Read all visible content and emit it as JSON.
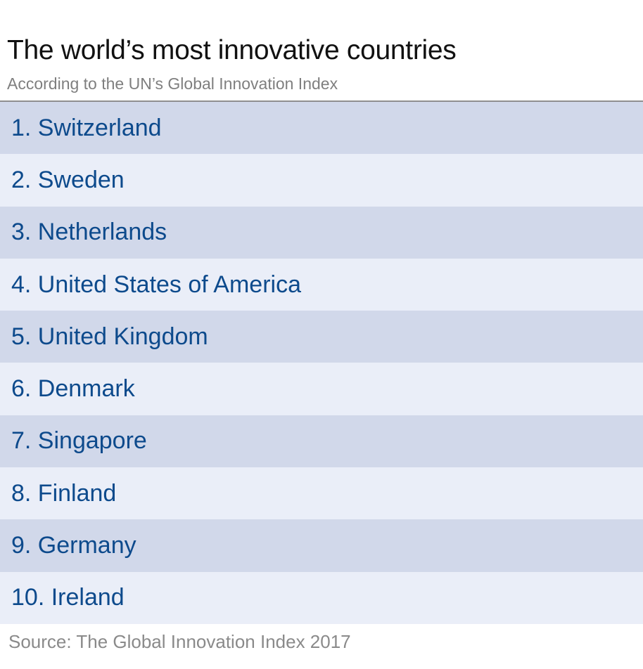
{
  "title": "The world’s most innovative countries",
  "subtitle": "According to the UN’s Global Innovation Index",
  "source": "Source: The Global Innovation Index 2017",
  "chart_data": {
    "type": "table",
    "title": "The world’s most innovative countries",
    "subtitle": "According to the UN’s Global Innovation Index",
    "rows": [
      "1. Switzerland",
      "2. Sweden",
      "3. Netherlands",
      "4. United States of America",
      "5. United Kingdom",
      "6. Denmark",
      "7. Singapore",
      "8. Finland",
      "9. Germany",
      "10. Ireland"
    ],
    "colors": {
      "row_odd": "#d1d8ea",
      "row_even": "#eaeef8",
      "text": "#0d4a8c"
    }
  }
}
